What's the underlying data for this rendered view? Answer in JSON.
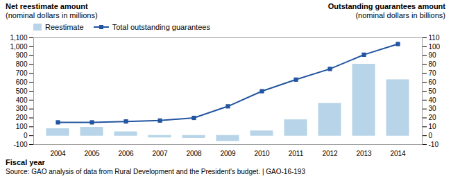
{
  "chart_data": {
    "type": "bar",
    "categories": [
      "2004",
      "2005",
      "2006",
      "2007",
      "2008",
      "2009",
      "2010",
      "2011",
      "2012",
      "2013",
      "2014"
    ],
    "series": [
      {
        "name": "Reestimate",
        "type": "bar",
        "color": "#b8d4e8",
        "values": [
          75,
          90,
          40,
          -20,
          -25,
          -60,
          50,
          175,
          360,
          800,
          625
        ]
      },
      {
        "name": "Total outstanding guarantees",
        "type": "line",
        "axis": "y2",
        "color": "#2255a0",
        "marker": "square",
        "values": [
          15,
          15,
          16,
          17,
          20,
          33,
          50,
          63,
          75,
          91,
          103
        ]
      }
    ],
    "ylabel": "Net reestimate amount\n(nominal dollars in millions)",
    "y2label": "Outstanding guarantees amount\n(nominal dollars in billions)",
    "xlabel": "Fiscal year",
    "ylim": [
      -100,
      1100
    ],
    "yticks": [
      -100,
      0,
      100,
      200,
      300,
      400,
      500,
      600,
      700,
      800,
      900,
      {
        "value": 1000,
        "label": "1,000"
      },
      {
        "value": 1100,
        "label": "1,100"
      }
    ],
    "y2lim": [
      -10,
      110
    ],
    "y2ticks": [
      -10,
      0,
      10,
      20,
      30,
      40,
      50,
      60,
      70,
      80,
      90,
      100,
      110
    ],
    "annotations": [
      "Source: GAO analysis of data from Rural Development and the President's budget.   |  GAO-16-193"
    ],
    "legend": "upper left",
    "grid": false
  }
}
